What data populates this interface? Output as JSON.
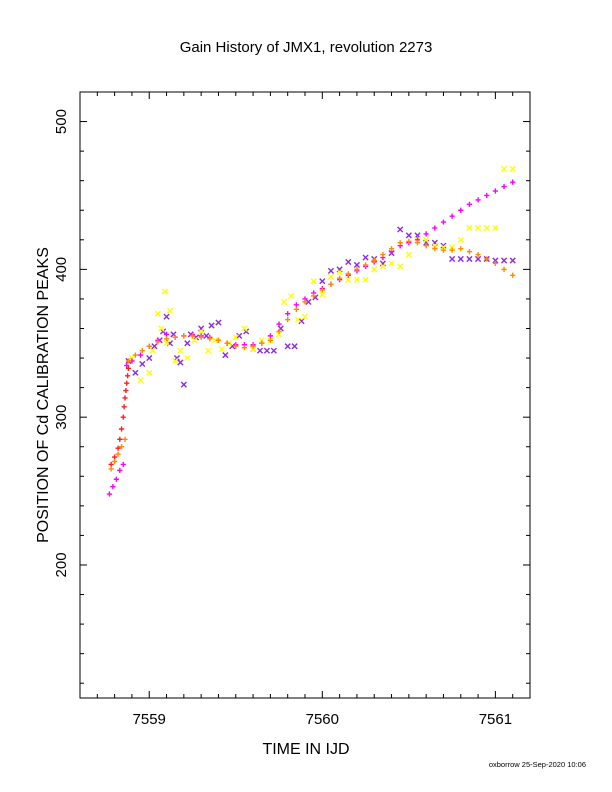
{
  "chart_data": {
    "type": "scatter",
    "title": "Gain History of JMX1, revolution 2273",
    "xlabel": "TIME IN IJD",
    "ylabel": "POSITION OF Cd CALIBRATION PEAKS",
    "xlim": [
      7558.6,
      7561.2
    ],
    "ylim": [
      110,
      520
    ],
    "xticks": [
      7559,
      7560,
      7561
    ],
    "xtick_labels": [
      "7559",
      "7560",
      "7561"
    ],
    "yticks": [
      200,
      300,
      400,
      500
    ],
    "ytick_labels": [
      "200",
      "300",
      "400",
      "500"
    ],
    "grid": false,
    "legend": "none",
    "footer": "oxborrow 25-Sep-2020 10:06",
    "colors": {
      "red": "#ff2020",
      "purple": "#8a2be2",
      "yellow": "#ffff00",
      "magenta": "#ff00ff",
      "orange": "#ff8c00"
    },
    "series": [
      {
        "color": "#ff2020",
        "marker": "plus",
        "x": [
          7558.78,
          7558.8,
          7558.82,
          7558.83,
          7558.84,
          7558.85,
          7558.855,
          7558.86,
          7558.865,
          7558.87,
          7558.875,
          7558.88
        ],
        "y": [
          268,
          273,
          279,
          285,
          292,
          300,
          307,
          313,
          318,
          323,
          328,
          333
        ]
      },
      {
        "color": "#8a2be2",
        "marker": "x",
        "x": [
          7558.88,
          7558.92,
          7558.96,
          7559.0,
          7559.03,
          7559.06,
          7559.08,
          7559.1,
          7559.12,
          7559.14,
          7559.16,
          7559.18,
          7559.2,
          7559.22,
          7559.24,
          7559.27,
          7559.3,
          7559.33,
          7559.36,
          7559.4,
          7559.44,
          7559.48,
          7559.52,
          7559.56,
          7559.6,
          7559.64,
          7559.68,
          7559.72,
          7559.76,
          7559.8,
          7559.84,
          7559.88,
          7559.92,
          7559.96,
          7560.0,
          7560.05,
          7560.1,
          7560.15,
          7560.2,
          7560.25,
          7560.3,
          7560.35,
          7560.4,
          7560.45,
          7560.5,
          7560.55,
          7560.6,
          7560.65,
          7560.7,
          7560.75,
          7560.8,
          7560.85,
          7560.9,
          7560.95,
          7561.0,
          7561.05,
          7561.1
        ],
        "y": [
          338,
          330,
          336,
          340,
          348,
          352,
          358,
          368,
          350,
          356,
          340,
          337,
          322,
          350,
          356,
          354,
          360,
          355,
          362,
          364,
          342,
          348,
          355,
          358,
          346,
          345,
          345,
          345,
          360,
          348,
          348,
          365,
          378,
          381,
          392,
          399,
          400,
          405,
          403,
          408,
          407,
          404,
          411,
          427,
          423,
          423,
          418,
          418,
          416,
          407,
          407,
          407,
          407,
          407,
          406,
          406,
          406
        ]
      },
      {
        "color": "#ffff00",
        "marker": "x",
        "x": [
          7558.9,
          7558.95,
          7559.0,
          7559.02,
          7559.05,
          7559.07,
          7559.09,
          7559.1,
          7559.12,
          7559.15,
          7559.18,
          7559.22,
          7559.26,
          7559.3,
          7559.34,
          7559.38,
          7559.42,
          7559.46,
          7559.5,
          7559.55,
          7559.6,
          7559.65,
          7559.7,
          7559.75,
          7559.78,
          7559.82,
          7559.86,
          7559.9,
          7559.95,
          7560.0,
          7560.05,
          7560.1,
          7560.15,
          7560.2,
          7560.25,
          7560.3,
          7560.35,
          7560.4,
          7560.45,
          7560.5,
          7560.55,
          7560.6,
          7560.65,
          7560.7,
          7560.75,
          7560.8,
          7560.85,
          7560.9,
          7560.95,
          7561.0,
          7561.05,
          7561.1
        ],
        "y": [
          340,
          325,
          330,
          345,
          370,
          360,
          385,
          350,
          372,
          338,
          345,
          340,
          352,
          358,
          345,
          352,
          346,
          350,
          354,
          360,
          346,
          352,
          352,
          356,
          378,
          382,
          366,
          368,
          392,
          383,
          395,
          398,
          393,
          393,
          393,
          400,
          402,
          404,
          402,
          410,
          420,
          420,
          416,
          415,
          415,
          420,
          428,
          428,
          428,
          428,
          468,
          468
        ]
      },
      {
        "color": "#ff00ff",
        "marker": "plus",
        "x": [
          7558.77,
          7558.79,
          7558.81,
          7558.83,
          7558.85,
          7558.87,
          7558.9,
          7558.95,
          7559.0,
          7559.05,
          7559.1,
          7559.15,
          7559.2,
          7559.25,
          7559.3,
          7559.35,
          7559.4,
          7559.45,
          7559.5,
          7559.55,
          7559.6,
          7559.65,
          7559.7,
          7559.75,
          7559.8,
          7559.85,
          7559.9,
          7559.95,
          7560.0,
          7560.05,
          7560.1,
          7560.15,
          7560.2,
          7560.25,
          7560.3,
          7560.35,
          7560.4,
          7560.45,
          7560.5,
          7560.55,
          7560.6,
          7560.65,
          7560.7,
          7560.75,
          7560.8,
          7560.85,
          7560.9,
          7560.95,
          7561.0,
          7561.05,
          7561.1
        ],
        "y": [
          248,
          253,
          258,
          264,
          268,
          335,
          338,
          342,
          348,
          352,
          356,
          354,
          355,
          356,
          355,
          354,
          352,
          350,
          349,
          349,
          349,
          350,
          355,
          363,
          370,
          376,
          380,
          384,
          387,
          390,
          393,
          396,
          399,
          402,
          405,
          408,
          412,
          416,
          418,
          420,
          424,
          428,
          432,
          436,
          440,
          444,
          447,
          450,
          453,
          456,
          459
        ]
      },
      {
        "color": "#ff8c00",
        "marker": "plus",
        "x": [
          7558.78,
          7558.8,
          7558.82,
          7558.84,
          7558.86,
          7558.88,
          7558.92,
          7558.96,
          7559.0,
          7559.05,
          7559.1,
          7559.15,
          7559.2,
          7559.25,
          7559.3,
          7559.35,
          7559.4,
          7559.45,
          7559.5,
          7559.55,
          7559.6,
          7559.65,
          7559.7,
          7559.75,
          7559.8,
          7559.85,
          7559.9,
          7559.95,
          7560.0,
          7560.05,
          7560.1,
          7560.15,
          7560.2,
          7560.25,
          7560.3,
          7560.35,
          7560.4,
          7560.45,
          7560.5,
          7560.55,
          7560.6,
          7560.65,
          7560.7,
          7560.75,
          7560.8,
          7560.85,
          7560.9,
          7560.95,
          7561.0,
          7561.05,
          7561.1
        ],
        "y": [
          265,
          270,
          275,
          280,
          285,
          338,
          342,
          345,
          348,
          351,
          353,
          354,
          355,
          355,
          354,
          353,
          352,
          350,
          348,
          347,
          348,
          350,
          352,
          358,
          366,
          373,
          378,
          382,
          386,
          390,
          394,
          397,
          400,
          403,
          406,
          410,
          414,
          418,
          419,
          418,
          416,
          414,
          413,
          413,
          414,
          412,
          410,
          407,
          404,
          400,
          396
        ]
      }
    ]
  }
}
